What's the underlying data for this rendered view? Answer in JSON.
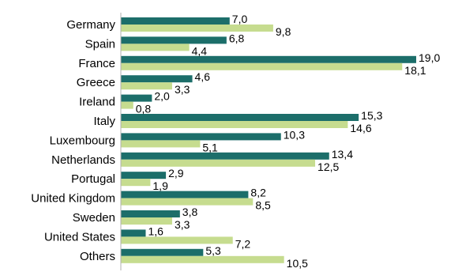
{
  "chart_data": {
    "type": "bar",
    "orientation": "horizontal",
    "categories": [
      "Germany",
      "Spain",
      "France",
      "Greece",
      "Ireland",
      "Italy",
      "Luxembourg",
      "Netherlands",
      "Portugal",
      "United Kingdom",
      "Sweden",
      "United States",
      "Others"
    ],
    "series": [
      {
        "color": "#1c6e6a",
        "values": [
          7.0,
          6.8,
          19.0,
          4.6,
          2.0,
          15.3,
          10.3,
          13.4,
          2.9,
          8.2,
          3.8,
          1.6,
          5.3
        ],
        "labels": [
          "7,0",
          "6,8",
          "19,0",
          "4,6",
          "2,0",
          "15,3",
          "10,3",
          "13,4",
          "2,9",
          "8,2",
          "3,8",
          "1,6",
          "5,3"
        ]
      },
      {
        "color": "#c6dc8f",
        "values": [
          9.8,
          4.4,
          18.1,
          3.3,
          0.8,
          14.6,
          5.1,
          12.5,
          1.9,
          8.5,
          3.3,
          7.2,
          10.5
        ],
        "labels": [
          "9,8",
          "4,4",
          "18,1",
          "3,3",
          "0,8",
          "14,6",
          "5,1",
          "12,5",
          "1,9",
          "8,5",
          "3,3",
          "7,2",
          "10,5"
        ]
      }
    ],
    "title": "",
    "xlabel": "",
    "ylabel": "",
    "xlim": [
      0,
      19
    ],
    "grid": false,
    "legend": "none"
  }
}
